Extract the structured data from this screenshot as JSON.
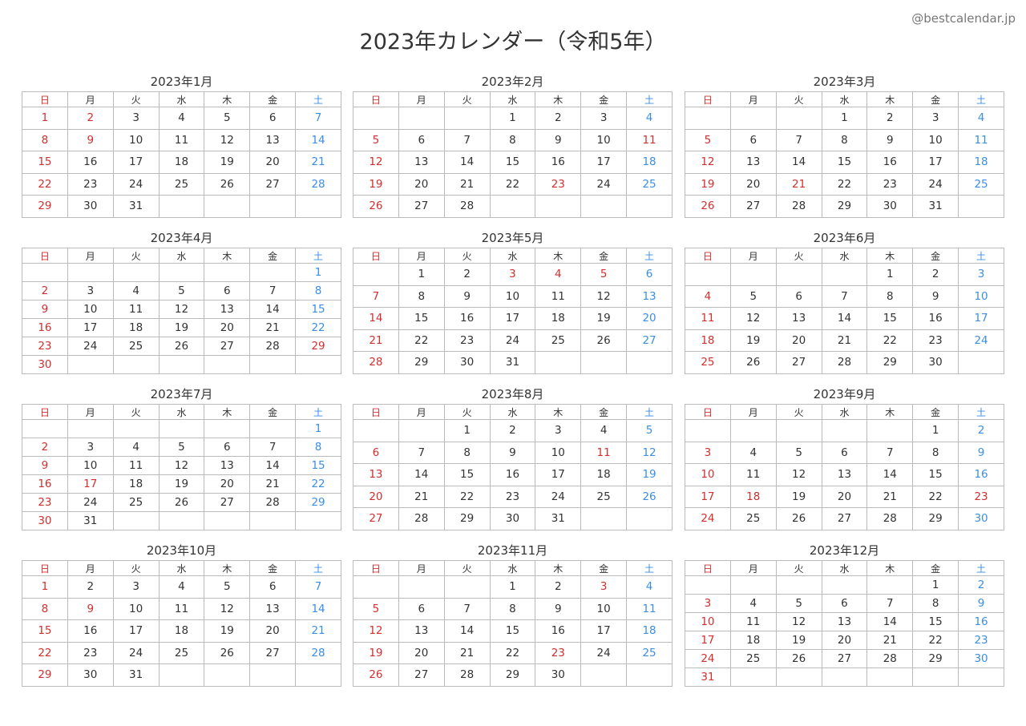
{
  "site": "@bestcalendar.jp",
  "title": "2023年カレンダー（令和5年）",
  "colors": {
    "holiday": "#d32f2f",
    "saturday": "#3a8ee6",
    "text": "#333333"
  },
  "weekdays": [
    "日",
    "月",
    "火",
    "水",
    "木",
    "金",
    "土"
  ],
  "months": [
    {
      "title": "2023年1月",
      "holidays": [
        1,
        2,
        9
      ],
      "weeks": [
        [
          1,
          2,
          3,
          4,
          5,
          6,
          7
        ],
        [
          8,
          9,
          10,
          11,
          12,
          13,
          14
        ],
        [
          15,
          16,
          17,
          18,
          19,
          20,
          21
        ],
        [
          22,
          23,
          24,
          25,
          26,
          27,
          28
        ],
        [
          29,
          30,
          31,
          null,
          null,
          null,
          null
        ]
      ]
    },
    {
      "title": "2023年2月",
      "holidays": [
        11,
        23
      ],
      "weeks": [
        [
          null,
          null,
          null,
          1,
          2,
          3,
          4
        ],
        [
          5,
          6,
          7,
          8,
          9,
          10,
          11
        ],
        [
          12,
          13,
          14,
          15,
          16,
          17,
          18
        ],
        [
          19,
          20,
          21,
          22,
          23,
          24,
          25
        ],
        [
          26,
          27,
          28,
          null,
          null,
          null,
          null
        ]
      ]
    },
    {
      "title": "2023年3月",
      "holidays": [
        21
      ],
      "weeks": [
        [
          null,
          null,
          null,
          1,
          2,
          3,
          4
        ],
        [
          5,
          6,
          7,
          8,
          9,
          10,
          11
        ],
        [
          12,
          13,
          14,
          15,
          16,
          17,
          18
        ],
        [
          19,
          20,
          21,
          22,
          23,
          24,
          25
        ],
        [
          26,
          27,
          28,
          29,
          30,
          31,
          null
        ]
      ]
    },
    {
      "title": "2023年4月",
      "holidays": [
        29
      ],
      "weeks": [
        [
          null,
          null,
          null,
          null,
          null,
          null,
          1
        ],
        [
          2,
          3,
          4,
          5,
          6,
          7,
          8
        ],
        [
          9,
          10,
          11,
          12,
          13,
          14,
          15
        ],
        [
          16,
          17,
          18,
          19,
          20,
          21,
          22
        ],
        [
          23,
          24,
          25,
          26,
          27,
          28,
          29
        ],
        [
          30,
          null,
          null,
          null,
          null,
          null,
          null
        ]
      ]
    },
    {
      "title": "2023年5月",
      "holidays": [
        3,
        4,
        5
      ],
      "weeks": [
        [
          null,
          1,
          2,
          3,
          4,
          5,
          6
        ],
        [
          7,
          8,
          9,
          10,
          11,
          12,
          13
        ],
        [
          14,
          15,
          16,
          17,
          18,
          19,
          20
        ],
        [
          21,
          22,
          23,
          24,
          25,
          26,
          27
        ],
        [
          28,
          29,
          30,
          31,
          null,
          null,
          null
        ]
      ]
    },
    {
      "title": "2023年6月",
      "holidays": [],
      "weeks": [
        [
          null,
          null,
          null,
          null,
          1,
          2,
          3
        ],
        [
          4,
          5,
          6,
          7,
          8,
          9,
          10
        ],
        [
          11,
          12,
          13,
          14,
          15,
          16,
          17
        ],
        [
          18,
          19,
          20,
          21,
          22,
          23,
          24
        ],
        [
          25,
          26,
          27,
          28,
          29,
          30,
          null
        ]
      ]
    },
    {
      "title": "2023年7月",
      "holidays": [
        17
      ],
      "weeks": [
        [
          null,
          null,
          null,
          null,
          null,
          null,
          1
        ],
        [
          2,
          3,
          4,
          5,
          6,
          7,
          8
        ],
        [
          9,
          10,
          11,
          12,
          13,
          14,
          15
        ],
        [
          16,
          17,
          18,
          19,
          20,
          21,
          22
        ],
        [
          23,
          24,
          25,
          26,
          27,
          28,
          29
        ],
        [
          30,
          31,
          null,
          null,
          null,
          null,
          null
        ]
      ]
    },
    {
      "title": "2023年8月",
      "holidays": [
        11
      ],
      "weeks": [
        [
          null,
          null,
          1,
          2,
          3,
          4,
          5
        ],
        [
          6,
          7,
          8,
          9,
          10,
          11,
          12
        ],
        [
          13,
          14,
          15,
          16,
          17,
          18,
          19
        ],
        [
          20,
          21,
          22,
          23,
          24,
          25,
          26
        ],
        [
          27,
          28,
          29,
          30,
          31,
          null,
          null
        ]
      ]
    },
    {
      "title": "2023年9月",
      "holidays": [
        18,
        23
      ],
      "weeks": [
        [
          null,
          null,
          null,
          null,
          null,
          1,
          2
        ],
        [
          3,
          4,
          5,
          6,
          7,
          8,
          9
        ],
        [
          10,
          11,
          12,
          13,
          14,
          15,
          16
        ],
        [
          17,
          18,
          19,
          20,
          21,
          22,
          23
        ],
        [
          24,
          25,
          26,
          27,
          28,
          29,
          30
        ]
      ]
    },
    {
      "title": "2023年10月",
      "holidays": [
        9
      ],
      "weeks": [
        [
          1,
          2,
          3,
          4,
          5,
          6,
          7
        ],
        [
          8,
          9,
          10,
          11,
          12,
          13,
          14
        ],
        [
          15,
          16,
          17,
          18,
          19,
          20,
          21
        ],
        [
          22,
          23,
          24,
          25,
          26,
          27,
          28
        ],
        [
          29,
          30,
          31,
          null,
          null,
          null,
          null
        ]
      ]
    },
    {
      "title": "2023年11月",
      "holidays": [
        3,
        23
      ],
      "weeks": [
        [
          null,
          null,
          null,
          1,
          2,
          3,
          4
        ],
        [
          5,
          6,
          7,
          8,
          9,
          10,
          11
        ],
        [
          12,
          13,
          14,
          15,
          16,
          17,
          18
        ],
        [
          19,
          20,
          21,
          22,
          23,
          24,
          25
        ],
        [
          26,
          27,
          28,
          29,
          30,
          null,
          null
        ]
      ]
    },
    {
      "title": "2023年12月",
      "holidays": [],
      "weeks": [
        [
          null,
          null,
          null,
          null,
          null,
          1,
          2
        ],
        [
          3,
          4,
          5,
          6,
          7,
          8,
          9
        ],
        [
          10,
          11,
          12,
          13,
          14,
          15,
          16
        ],
        [
          17,
          18,
          19,
          20,
          21,
          22,
          23
        ],
        [
          24,
          25,
          26,
          27,
          28,
          29,
          30
        ],
        [
          31,
          null,
          null,
          null,
          null,
          null,
          null
        ]
      ]
    }
  ]
}
